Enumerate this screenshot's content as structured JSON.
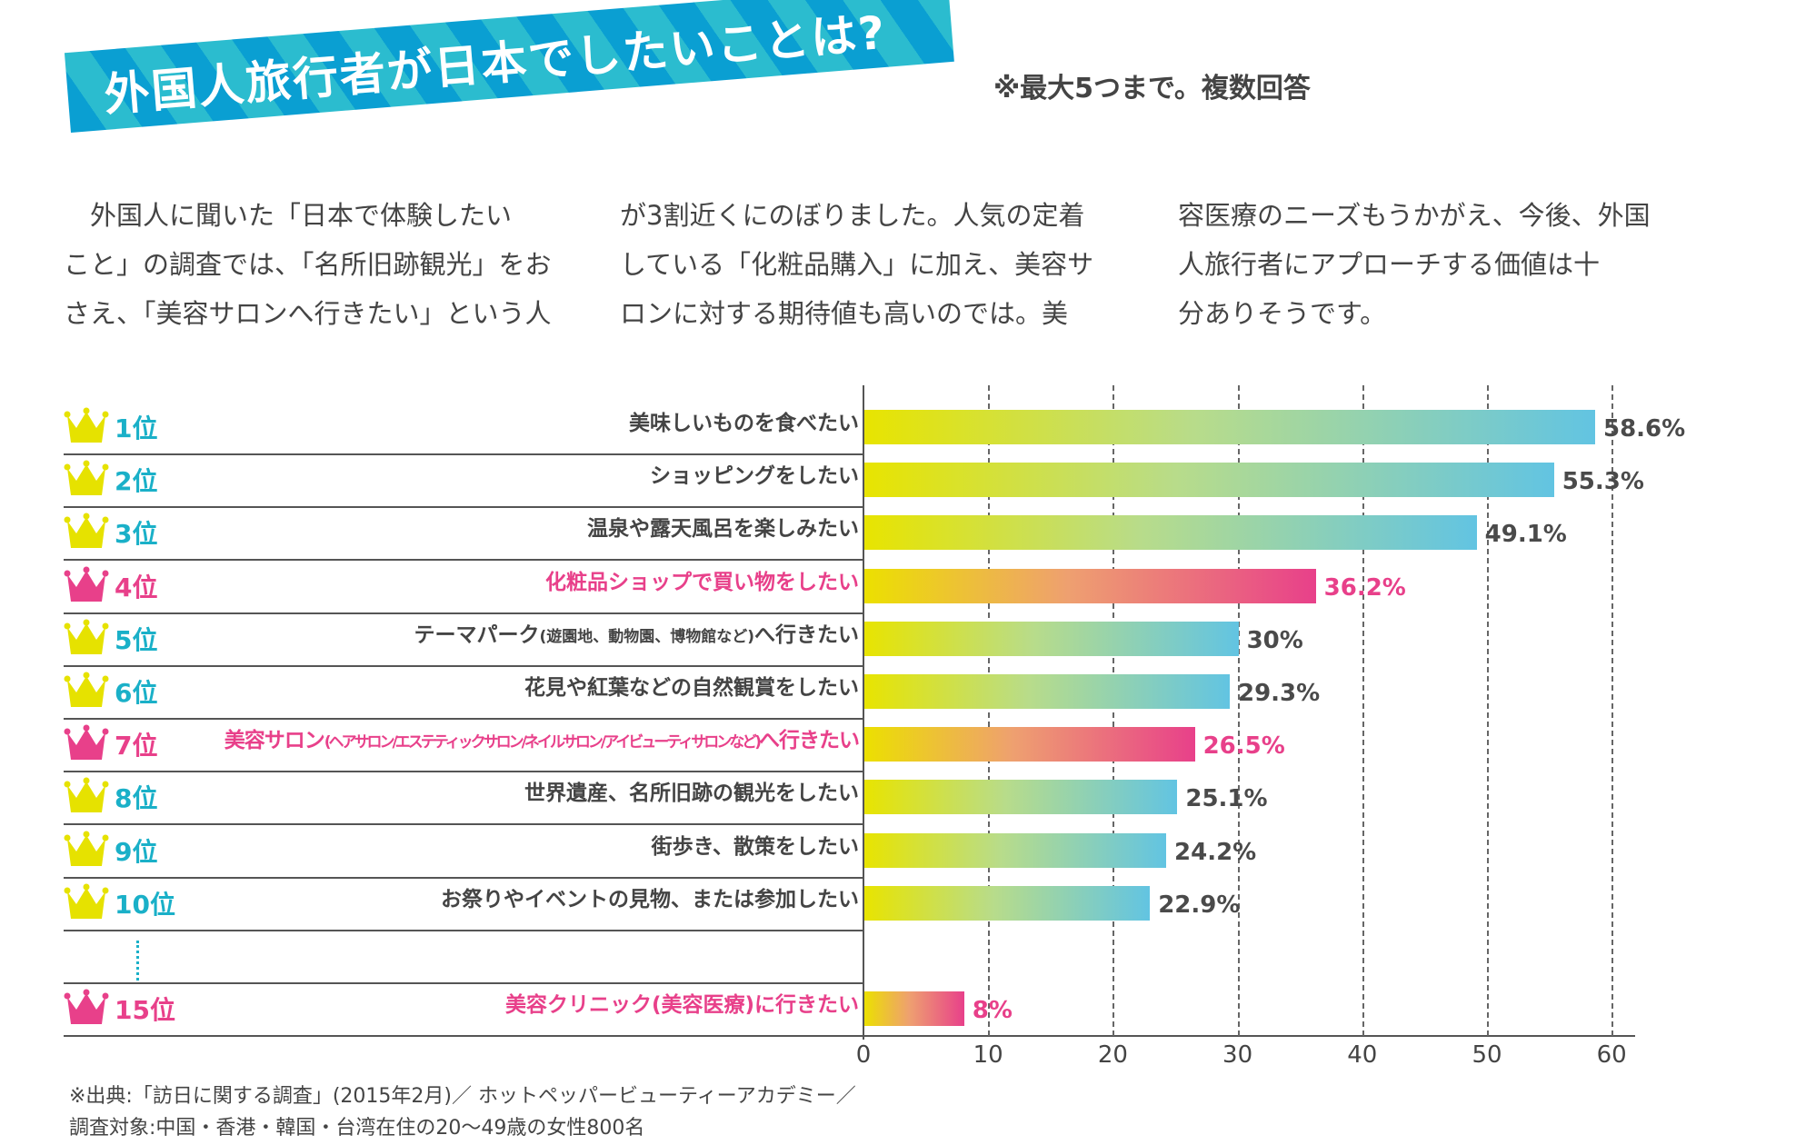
{
  "header": {
    "title": "外国人旅行者が日本でしたいことは?",
    "note": "※最大5つまで。複数回答",
    "banner_colors": [
      "#0a9fd2",
      "#2bbccf"
    ]
  },
  "intro": {
    "columns": [
      [
        "　外国人に聞いた「日本で体験したい",
        "こと」の調査では、「名所旧跡観光」をお",
        "さえ、「美容サロンへ行きたい」という人"
      ],
      [
        "が3割近くにのぼりました。人気の定着",
        "している「化粧品購入」に加え、美容サ",
        "ロンに対する期待値も高いのでは。美"
      ],
      [
        "容医療のニーズもうかがえ、今後、外国",
        "人旅行者にアプローチする価値は十",
        "分ありそうです。"
      ]
    ]
  },
  "chart_data": {
    "type": "bar",
    "orientation": "horizontal",
    "unit": "%",
    "xlim": [
      0,
      60
    ],
    "xticks": [
      "0",
      "10",
      "20",
      "30",
      "40",
      "50",
      "60"
    ],
    "grid": true,
    "colors": {
      "normal_start": "#e8e400",
      "normal_end": "#62c4e2",
      "highlight_start": "#ece000",
      "highlight_end": "#e8408a",
      "rank_text": "#1ab0c8",
      "highlight_text": "#e8408a",
      "crown_normal": "#e6e200",
      "crown_highlight": "#e8408a"
    },
    "rows": [
      {
        "rank": "1位",
        "label": "美味しいものを食べたい",
        "value": 58.6,
        "value_label": "58.6%",
        "highlight": false
      },
      {
        "rank": "2位",
        "label": "ショッピングをしたい",
        "value": 55.3,
        "value_label": "55.3%",
        "highlight": false
      },
      {
        "rank": "3位",
        "label": "温泉や露天風呂を楽しみたい",
        "value": 49.1,
        "value_label": "49.1%",
        "highlight": false
      },
      {
        "rank": "4位",
        "label": "化粧品ショップで買い物をしたい",
        "value": 36.2,
        "value_label": "36.2%",
        "highlight": true
      },
      {
        "rank": "5位",
        "label": "テーマパーク",
        "sublabel": "(遊園地、動物園、博物館など)",
        "label_tail": "へ行きたい",
        "value": 30,
        "value_label": "30%",
        "highlight": false
      },
      {
        "rank": "6位",
        "label": "花見や紅葉などの自然観賞をしたい",
        "value": 29.3,
        "value_label": "29.3%",
        "highlight": false
      },
      {
        "rank": "7位",
        "label": "美容サロン",
        "sublabel": "(ヘアサロン/エステティックサロン/ネイルサロン/アイビューティサロンなど)",
        "label_tail": "へ行きたい",
        "value": 26.5,
        "value_label": "26.5%",
        "highlight": true
      },
      {
        "rank": "8位",
        "label": "世界遺産、名所旧跡の観光をしたい",
        "value": 25.1,
        "value_label": "25.1%",
        "highlight": false
      },
      {
        "rank": "9位",
        "label": "街歩き、散策をしたい",
        "value": 24.2,
        "value_label": "24.2%",
        "highlight": false
      },
      {
        "rank": "10位",
        "label": "お祭りやイベントの見物、または参加したい",
        "value": 22.9,
        "value_label": "22.9%",
        "highlight": false
      },
      {
        "rank": "15位",
        "label": "美容クリニック(美容医療)に行きたい",
        "value": 8,
        "value_label": "8%",
        "highlight": true
      }
    ]
  },
  "footer": {
    "source": "※出典:「訪日に関する調査」(2015年2月)／ ホットペッパービューティーアカデミー／",
    "target": "調査対象:中国・香港・韓国・台湾在住の20〜49歳の女性800名"
  }
}
